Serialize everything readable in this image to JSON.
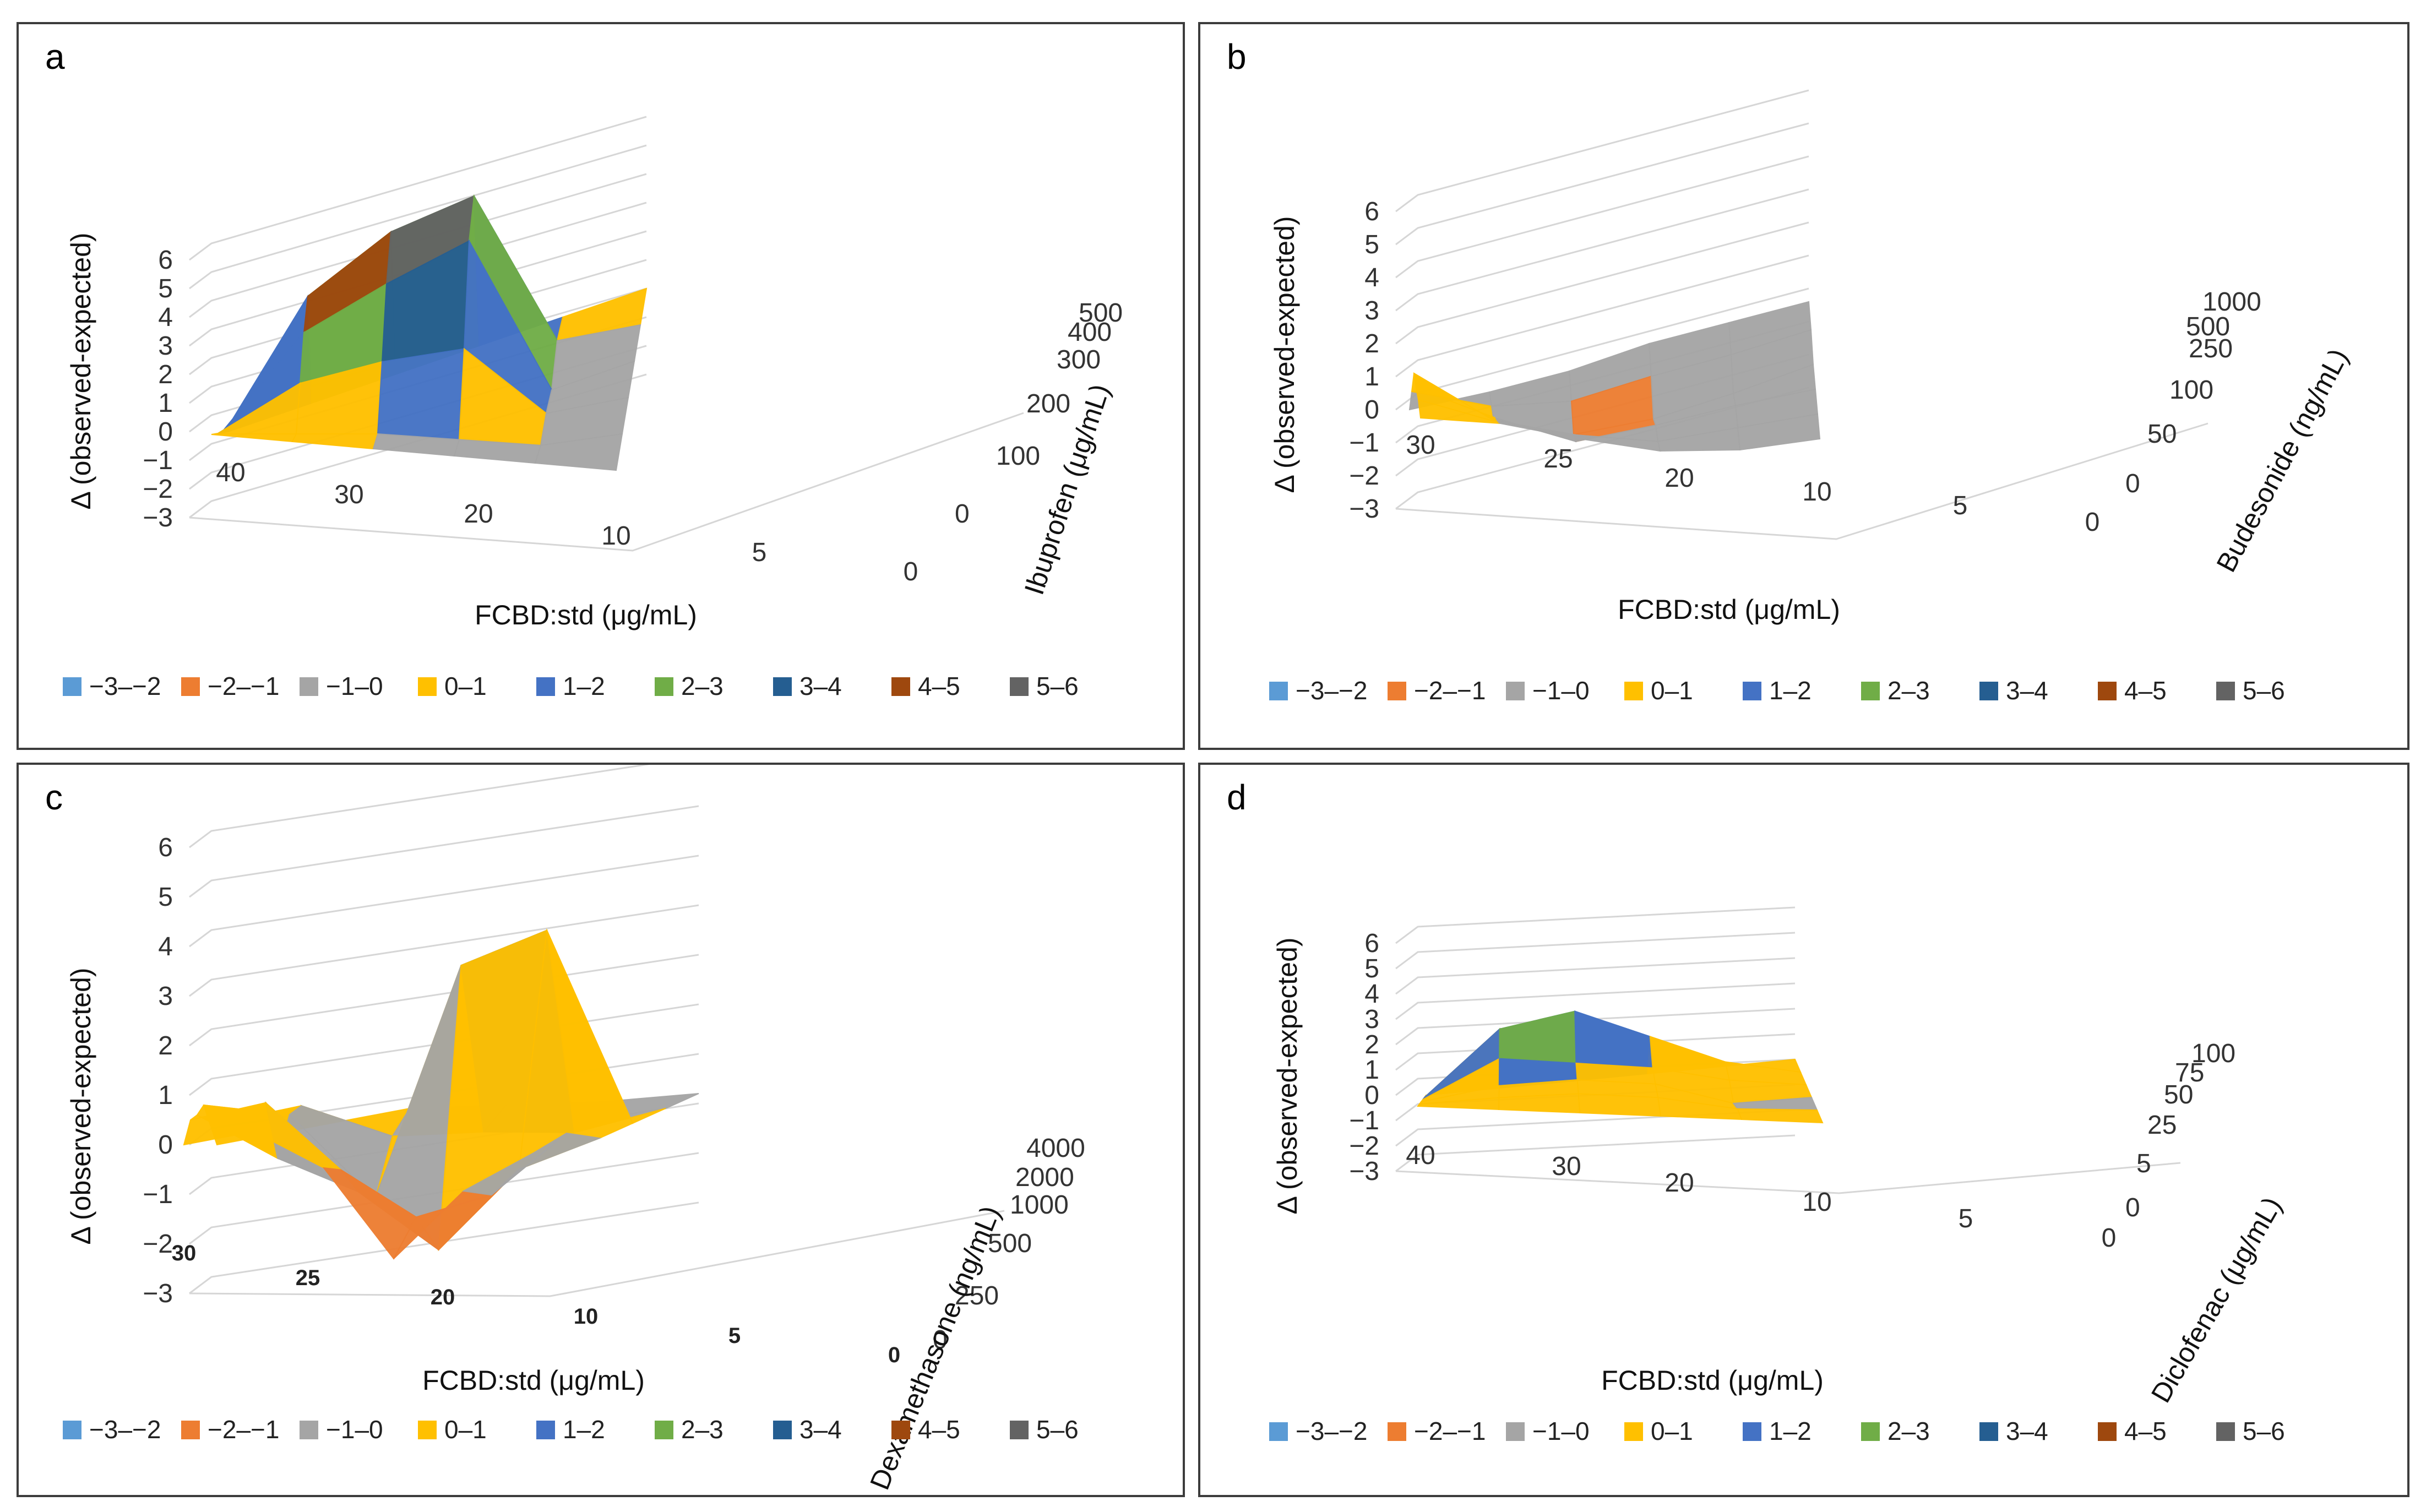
{
  "legend": {
    "labels": [
      "−3–−2",
      "−2–−1",
      "−1–0",
      "0–1",
      "1–2",
      "2–3",
      "3–4",
      "4–5",
      "5–6"
    ],
    "colors": [
      "#5b9bd5",
      "#ed7d31",
      "#a5a5a5",
      "#ffc000",
      "#4472c4",
      "#70ad47",
      "#255e91",
      "#9e480e",
      "#636363"
    ]
  },
  "chart_data": [
    {
      "panel": "a",
      "type": "surface",
      "title": "",
      "zlabel": "Δ (observed-expected)",
      "xlabel": "FCBD:std (μg/mL)",
      "ylabel": "Ibuprofen  (μg/mL)",
      "z_ticks": [
        "6",
        "5",
        "4",
        "3",
        "2",
        "1",
        "0",
        "−1",
        "−2",
        "−3"
      ],
      "zlim": [
        -3,
        6
      ],
      "x_ticks": [
        "40",
        "30",
        "20",
        "10",
        "5",
        "0"
      ],
      "y_ticks": [
        "0",
        "100",
        "200",
        "300",
        "400",
        "500"
      ],
      "values": [
        [
          0,
          0,
          0,
          0,
          0,
          0
        ],
        [
          0,
          0,
          0,
          -0.2,
          -0.4,
          0
        ],
        [
          0,
          1.5,
          2,
          2.2,
          -0.3,
          0
        ],
        [
          0,
          3,
          4.2,
          5.2,
          -0.5,
          0
        ],
        [
          0,
          4,
          5.5,
          6,
          0.2,
          0
        ],
        [
          0,
          0,
          0,
          0,
          0,
          0
        ]
      ]
    },
    {
      "panel": "b",
      "type": "surface",
      "title": "",
      "zlabel": "Δ (observed-expected)",
      "xlabel": "FCBD:std (μg/mL)",
      "ylabel": "Budesonide (ng/mL)",
      "z_ticks": [
        "6",
        "5",
        "4",
        "3",
        "2",
        "1",
        "0",
        "−1",
        "−2",
        "−3"
      ],
      "zlim": [
        -3,
        6
      ],
      "x_ticks": [
        "30",
        "25",
        "20",
        "10",
        "5",
        "0"
      ],
      "y_ticks": [
        "0",
        "50",
        "100",
        "250",
        "500",
        "1000"
      ],
      "values": [
        [
          0,
          0,
          -0.3,
          -0.5,
          -0.3,
          0.2
        ],
        [
          0.5,
          -0.2,
          -0.6,
          -0.8,
          -0.4,
          0
        ],
        [
          0.8,
          -0.3,
          -1.2,
          -0.9,
          -0.5,
          -0.2
        ],
        [
          1.2,
          -0.6,
          -1.4,
          -1.3,
          -0.9,
          -0.4
        ],
        [
          0.6,
          -0.4,
          -0.8,
          -0.6,
          -0.5,
          -0.3
        ],
        [
          0,
          -0.2,
          -0.3,
          -0.2,
          -0.3,
          -0.4
        ]
      ]
    },
    {
      "panel": "c",
      "type": "surface",
      "title": "",
      "zlabel": "Δ (observed-expected)",
      "xlabel": "FCBD:std (μg/mL)",
      "ylabel": "Dexamethasone (ng/mL)",
      "z_ticks": [
        "6",
        "5",
        "4",
        "3",
        "2",
        "1",
        "0",
        "−1",
        "−2",
        "−3"
      ],
      "zlim": [
        -3,
        6
      ],
      "x_ticks": [
        "30",
        "25",
        "20",
        "10",
        "5",
        "0"
      ],
      "y_ticks": [
        "0",
        "250",
        "500",
        "1000",
        "2000",
        "4000"
      ],
      "values": [
        [
          0,
          0.3,
          -0.4,
          -2.2,
          -0.8,
          0
        ],
        [
          0.5,
          0.8,
          -0.6,
          -1.6,
          -1.2,
          0
        ],
        [
          0.6,
          -0.4,
          -1.2,
          -2.5,
          -1,
          -0.5
        ],
        [
          0.8,
          0.4,
          -1.5,
          3,
          3.5,
          -0.6
        ],
        [
          0.4,
          0.5,
          -0.4,
          -0.6,
          -0.9,
          -0.7
        ],
        [
          0,
          0,
          0,
          -0.3,
          -0.6,
          -0.8
        ]
      ]
    },
    {
      "panel": "d",
      "type": "surface",
      "title": "",
      "zlabel": "Δ (observed-expected)",
      "xlabel": "FCBD:std (μg/mL)",
      "ylabel": "Diclofenac (μg/mL)",
      "z_ticks": [
        "6",
        "5",
        "4",
        "3",
        "2",
        "1",
        "0",
        "−1",
        "−2",
        "−3"
      ],
      "zlim": [
        -3,
        6
      ],
      "x_ticks": [
        "40",
        "30",
        "20",
        "10",
        "5",
        "0"
      ],
      "y_ticks": [
        "0",
        "5",
        "25",
        "50",
        "75",
        "100"
      ],
      "values": [
        [
          0,
          0,
          0,
          0,
          0,
          0
        ],
        [
          0,
          0.3,
          0.5,
          0.4,
          0,
          0
        ],
        [
          0,
          0.6,
          0.8,
          0.6,
          -0.2,
          0
        ],
        [
          0,
          1.5,
          1.2,
          0.9,
          0.3,
          0
        ],
        [
          0,
          2.5,
          3,
          1.8,
          0.6,
          0
        ],
        [
          0,
          0,
          0,
          0,
          0,
          0
        ]
      ]
    }
  ]
}
